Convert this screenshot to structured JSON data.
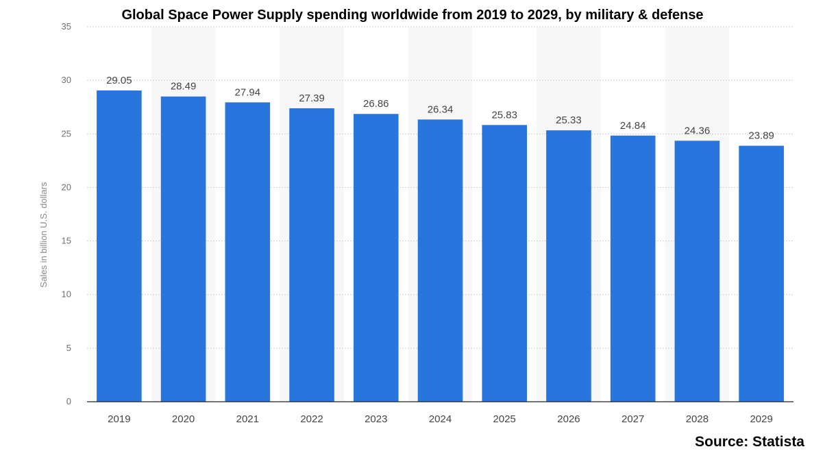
{
  "chart_data": {
    "type": "bar",
    "title": "Global Space Power Supply spending worldwide from 2019 to 2029, by military & defense",
    "xlabel": "",
    "ylabel": "Sales in billion U.S. dollars",
    "categories": [
      "2019",
      "2020",
      "2021",
      "2022",
      "2023",
      "2024",
      "2025",
      "2026",
      "2027",
      "2028",
      "2029"
    ],
    "values": [
      29.05,
      28.49,
      27.94,
      27.39,
      26.86,
      26.34,
      25.83,
      25.33,
      24.84,
      24.36,
      23.89
    ],
    "data_labels": [
      "29.05",
      "28.49",
      "27.94",
      "27.39",
      "26.86",
      "26.34",
      "25.83",
      "25.33",
      "24.84",
      "24.36",
      "23.89"
    ],
    "ylim": [
      0,
      35
    ],
    "yticks": [
      "0",
      "5",
      "10",
      "15",
      "20",
      "25",
      "30",
      "35"
    ],
    "grid": true,
    "legend": "none",
    "bar_color": "#2876dd",
    "alt_column_color": "#f7f7f7",
    "source": "Source: Statista"
  }
}
